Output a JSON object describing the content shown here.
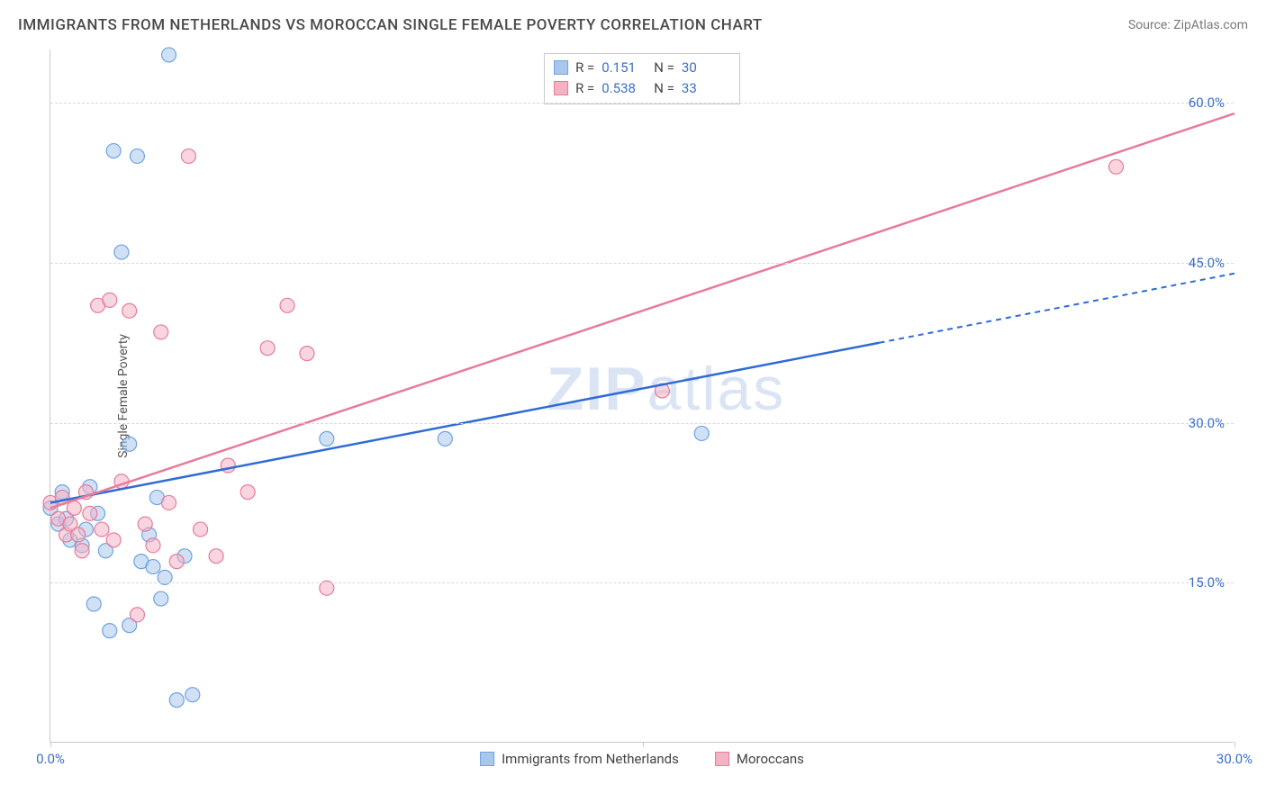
{
  "header": {
    "title": "IMMIGRANTS FROM NETHERLANDS VS MOROCCAN SINGLE FEMALE POVERTY CORRELATION CHART",
    "source_label": "Source: ",
    "source_name": "ZipAtlas.com"
  },
  "chart": {
    "type": "scatter",
    "ylabel": "Single Female Poverty",
    "watermark": "ZIPatlas",
    "background_color": "#ffffff",
    "grid_color": "#d9d9d9",
    "axis_color": "#c9c9c9",
    "label_color": "#3b6fc9",
    "xlim": [
      0,
      30
    ],
    "ylim": [
      0,
      65
    ],
    "xticks": [
      {
        "v": 0,
        "label": "0.0%"
      },
      {
        "v": 15,
        "label": ""
      },
      {
        "v": 30,
        "label": "30.0%"
      }
    ],
    "yticks": [
      {
        "v": 15,
        "label": "15.0%"
      },
      {
        "v": 30,
        "label": "30.0%"
      },
      {
        "v": 45,
        "label": "45.0%"
      },
      {
        "v": 60,
        "label": "60.0%"
      }
    ],
    "marker_radius": 8,
    "marker_opacity": 0.55,
    "series": [
      {
        "id": "netherlands",
        "label": "Immigrants from Netherlands",
        "color": "#6fa3e0",
        "fill": "#a9c7ec",
        "R": "0.151",
        "N": "30",
        "trend": {
          "x1": 0,
          "y1": 22.5,
          "x2": 21,
          "y2": 37.5,
          "x2_dash": 30,
          "y2_dash": 44,
          "line_width": 2
        },
        "points": [
          [
            0.0,
            22.0
          ],
          [
            0.2,
            20.5
          ],
          [
            0.3,
            23.5
          ],
          [
            0.4,
            21.0
          ],
          [
            0.5,
            19.0
          ],
          [
            0.8,
            18.5
          ],
          [
            0.9,
            20.0
          ],
          [
            1.0,
            24.0
          ],
          [
            1.1,
            13.0
          ],
          [
            1.2,
            21.5
          ],
          [
            1.4,
            18.0
          ],
          [
            1.5,
            10.5
          ],
          [
            1.6,
            55.5
          ],
          [
            1.8,
            46.0
          ],
          [
            2.0,
            28.0
          ],
          [
            2.2,
            55.0
          ],
          [
            2.3,
            17.0
          ],
          [
            2.5,
            19.5
          ],
          [
            2.6,
            16.5
          ],
          [
            2.7,
            23.0
          ],
          [
            2.8,
            13.5
          ],
          [
            3.0,
            64.5
          ],
          [
            3.2,
            4.0
          ],
          [
            3.4,
            17.5
          ],
          [
            3.6,
            4.5
          ],
          [
            2.9,
            15.5
          ],
          [
            7.0,
            28.5
          ],
          [
            10.0,
            28.5
          ],
          [
            16.5,
            29.0
          ],
          [
            2.0,
            11.0
          ]
        ]
      },
      {
        "id": "moroccans",
        "label": "Moroccans",
        "color": "#e87b9a",
        "fill": "#f3b3c4",
        "R": "0.538",
        "N": "33",
        "trend": {
          "x1": 0,
          "y1": 22.0,
          "x2": 30,
          "y2": 59.0,
          "x2_dash": 30,
          "y2_dash": 59.0,
          "line_width": 2
        },
        "points": [
          [
            0.0,
            22.5
          ],
          [
            0.2,
            21.0
          ],
          [
            0.3,
            23.0
          ],
          [
            0.4,
            19.5
          ],
          [
            0.5,
            20.5
          ],
          [
            0.6,
            22.0
          ],
          [
            0.8,
            18.0
          ],
          [
            0.9,
            23.5
          ],
          [
            1.0,
            21.5
          ],
          [
            1.2,
            41.0
          ],
          [
            1.3,
            20.0
          ],
          [
            1.5,
            41.5
          ],
          [
            1.6,
            19.0
          ],
          [
            1.8,
            24.5
          ],
          [
            2.0,
            40.5
          ],
          [
            2.2,
            12.0
          ],
          [
            2.4,
            20.5
          ],
          [
            2.6,
            18.5
          ],
          [
            2.8,
            38.5
          ],
          [
            3.0,
            22.5
          ],
          [
            3.2,
            17.0
          ],
          [
            3.5,
            55.0
          ],
          [
            3.8,
            20.0
          ],
          [
            4.2,
            17.5
          ],
          [
            4.5,
            26.0
          ],
          [
            5.0,
            23.5
          ],
          [
            5.5,
            37.0
          ],
          [
            6.0,
            41.0
          ],
          [
            6.5,
            36.5
          ],
          [
            7.0,
            14.5
          ],
          [
            15.5,
            33.0
          ],
          [
            27.0,
            54.0
          ],
          [
            0.7,
            19.5
          ]
        ]
      }
    ],
    "legend_box": {
      "r_prefix": "R = ",
      "n_prefix": "N = "
    }
  }
}
